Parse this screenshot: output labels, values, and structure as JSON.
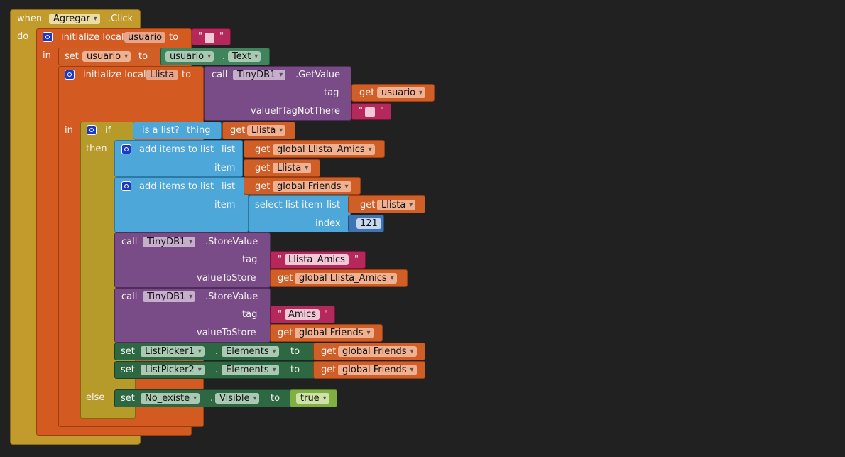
{
  "event": {
    "when": "when",
    "component": "Agregar",
    "event_name": ".Click",
    "do": "do"
  },
  "init_usuario": {
    "label": "initialize local",
    "var_name": "usuario",
    "to": "to",
    "in": "in",
    "text_open": "\"",
    "text_close": "\""
  },
  "set_usuario": {
    "set": "set",
    "var_name": "usuario",
    "to": "to",
    "component": "usuario",
    "dot": ".",
    "property": "Text"
  },
  "init_llista": {
    "label": "initialize local",
    "var_name": "Llista",
    "to": "to",
    "in": "in"
  },
  "get_value": {
    "call": "call",
    "component": "TinyDB1",
    "method": ".GetValue",
    "tag": "tag",
    "tag_get": "get",
    "tag_var": "usuario",
    "value_label": "valueIfTagNotThere",
    "text_open": "\"",
    "text_close": "\""
  },
  "if_block": {
    "if": "if",
    "then": "then",
    "else": "else"
  },
  "is_list": {
    "label": "is a list?",
    "thing": "thing",
    "get": "get",
    "var": "Llista"
  },
  "add_items_1": {
    "label": "add items to list",
    "list": "list",
    "list_get": "get",
    "list_var": "global Llista_Amics",
    "item": "item",
    "item_get": "get",
    "item_var": "Llista"
  },
  "add_items_2": {
    "label": "add items to list",
    "list": "list",
    "list_get": "get",
    "list_var": "global Friends",
    "item": "item",
    "select_label": "select list item",
    "select_list": "list",
    "select_get": "get",
    "select_var": "Llista",
    "index": "index",
    "index_value": "121"
  },
  "store_1": {
    "call": "call",
    "component": "TinyDB1",
    "method": ".StoreValue",
    "tag": "tag",
    "tag_open": "\"",
    "tag_value": "Llista_Amics",
    "tag_close": "\"",
    "value_label": "valueToStore",
    "value_get": "get",
    "value_var": "global Llista_Amics"
  },
  "store_2": {
    "call": "call",
    "component": "TinyDB1",
    "method": ".StoreValue",
    "tag": "tag",
    "tag_open": "\"",
    "tag_value": "Amics",
    "tag_close": "\"",
    "value_label": "valueToStore",
    "value_get": "get",
    "value_var": "global Friends"
  },
  "set_picker_1": {
    "set": "set",
    "component": "ListPicker1",
    "dot": ".",
    "property": "Elements",
    "to": "to",
    "get": "get",
    "var": "global Friends"
  },
  "set_picker_2": {
    "set": "set",
    "component": "ListPicker2",
    "dot": ".",
    "property": "Elements",
    "to": "to",
    "get": "get",
    "var": "global Friends"
  },
  "set_no_existe": {
    "set": "set",
    "component": "No_existe",
    "dot": ".",
    "property": "Visible",
    "to": "to",
    "value": "true"
  }
}
